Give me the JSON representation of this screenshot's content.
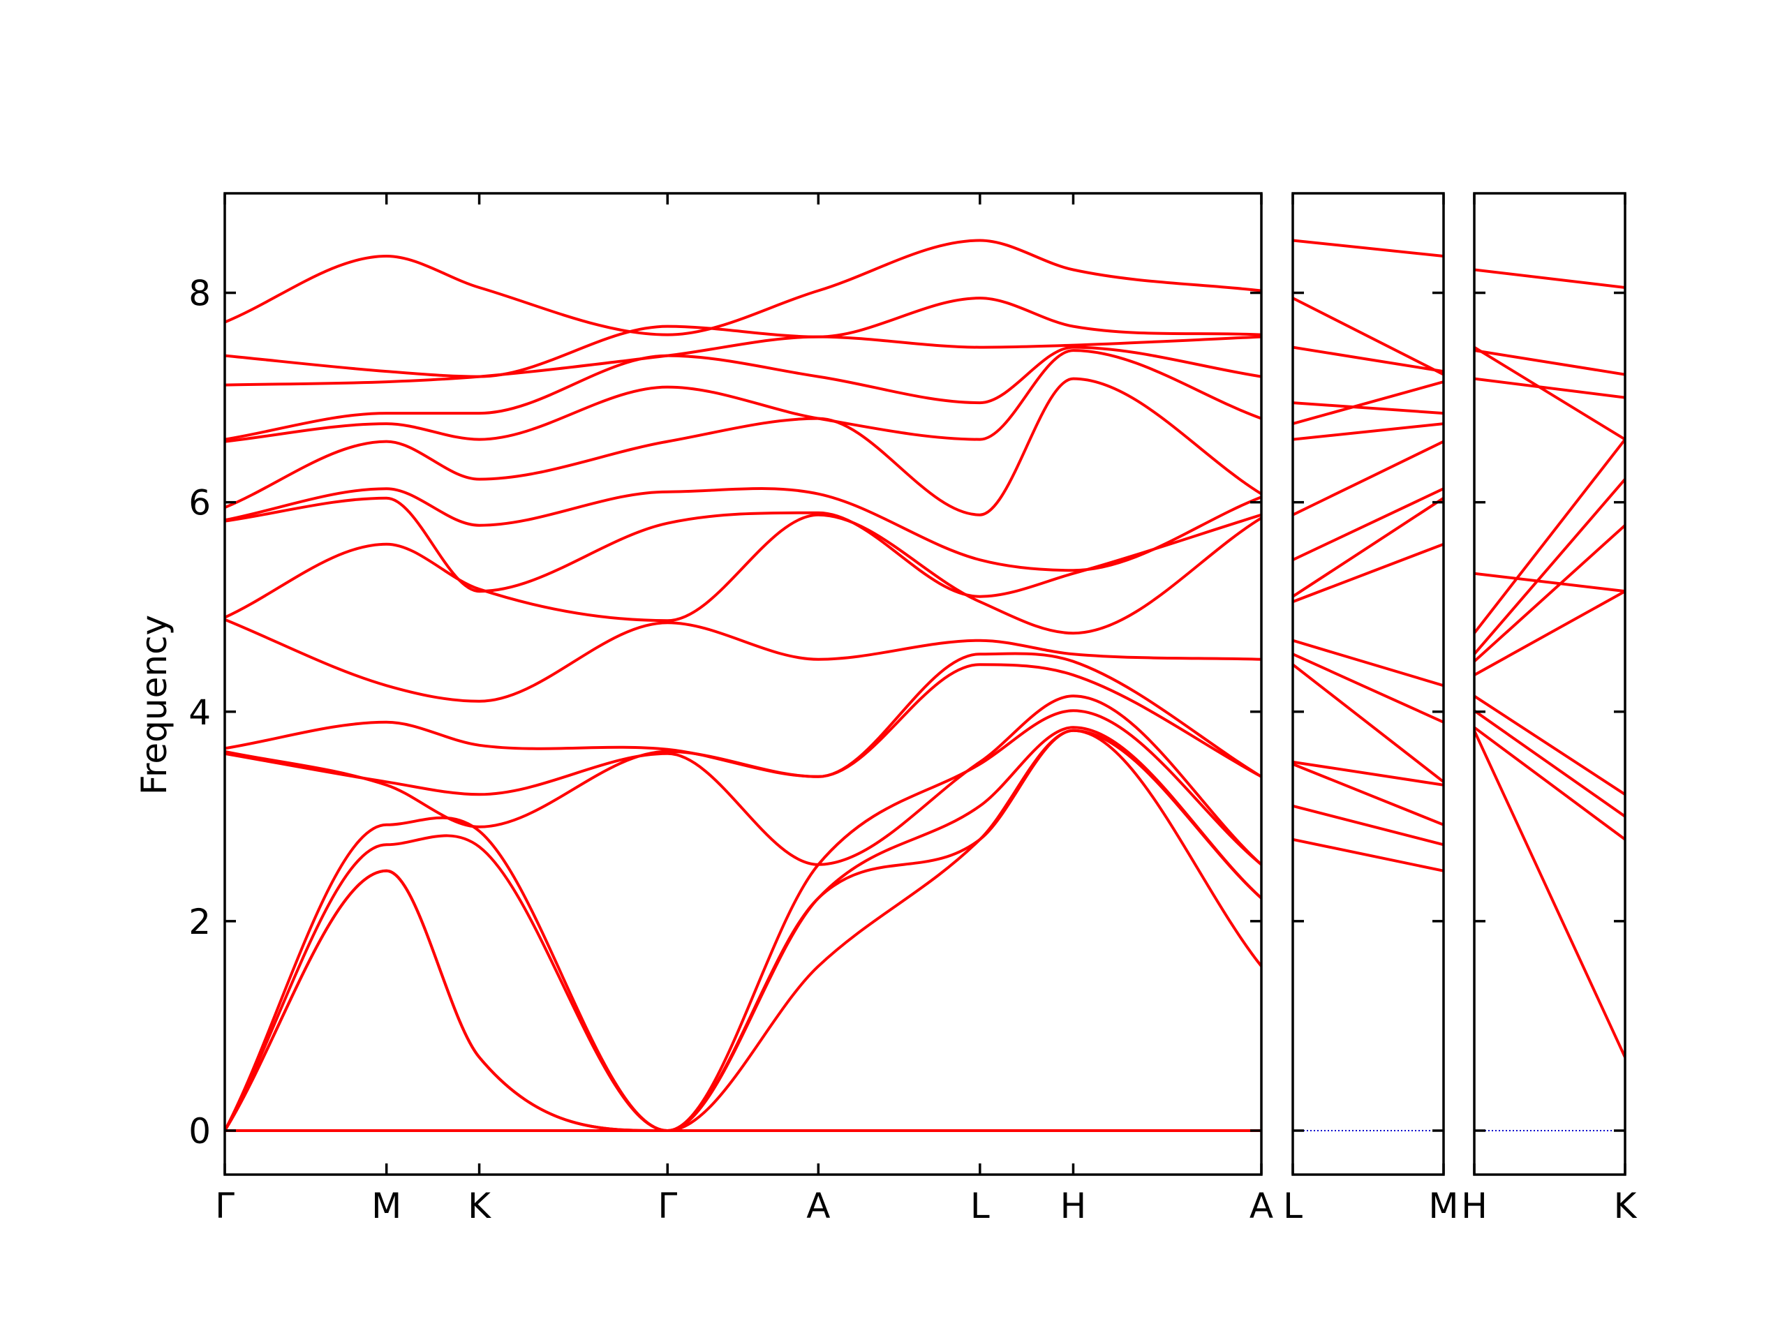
{
  "chart_data": {
    "type": "line",
    "ylabel": "Frequency",
    "xlabel": "",
    "ylim": [
      -0.42,
      8.95
    ],
    "yticks": [
      0,
      2,
      4,
      6,
      8
    ],
    "grid": false,
    "legend": "none",
    "band_color": "#ff0000",
    "zero_line_color": "#0000cc",
    "panels": [
      {
        "ticks": [
          "Γ",
          "M",
          "K",
          "Γ",
          "A",
          "L",
          "H",
          "A"
        ],
        "series": [
          {
            "name": "",
            "values": [
              [
                0,
                0.0,
                0.0,
                0.0,
                0.0,
                0.0,
                0.0,
                0.0
              ],
              [
                0,
                2.48,
                0.7,
                0.0,
                1.57,
                2.78,
                3.82,
                1.57
              ]
            ]
          },
          {
            "name": "",
            "values": [
              [
                0.0,
                2.48,
                0.7,
                0.0,
                2.22,
                2.78,
                3.82,
                2.22
              ]
            ]
          },
          {
            "name": "",
            "values": [
              [
                0.0,
                2.73,
                2.71,
                0.0,
                2.22,
                3.1,
                3.85,
                2.22
              ]
            ]
          },
          {
            "name": "",
            "values": [
              [
                0.0,
                2.92,
                2.86,
                0.0,
                2.54,
                3.5,
                4.01,
                2.54
              ]
            ]
          },
          {
            "name": "",
            "values": [
              [
                3.6,
                3.33,
                3.21,
                3.6,
                2.54,
                3.52,
                4.15,
                2.54
              ]
            ]
          },
          {
            "name": "",
            "values": [
              [
                3.62,
                3.3,
                2.9,
                3.62,
                3.38,
                4.45,
                4.35,
                3.38
              ]
            ]
          },
          {
            "name": "",
            "values": [
              [
                3.65,
                3.9,
                3.68,
                3.64,
                3.38,
                4.55,
                4.48,
                3.38
              ]
            ]
          },
          {
            "name": "",
            "values": [
              [
                4.88,
                4.25,
                4.1,
                4.85,
                4.5,
                4.68,
                4.55,
                4.5
              ]
            ]
          },
          {
            "name": "",
            "values": [
              [
                4.9,
                5.6,
                5.17,
                4.87,
                5.88,
                5.05,
                4.75,
                5.85
              ]
            ]
          },
          {
            "name": "",
            "values": [
              [
                5.82,
                6.04,
                5.15,
                5.8,
                5.9,
                5.1,
                5.32,
                5.88
              ]
            ]
          },
          {
            "name": "",
            "values": [
              [
                5.83,
                6.13,
                5.78,
                6.1,
                6.08,
                5.45,
                5.35,
                6.05
              ]
            ]
          },
          {
            "name": "",
            "values": [
              [
                5.95,
                6.58,
                6.22,
                6.58,
                6.8,
                5.88,
                7.18,
                6.08
              ]
            ]
          },
          {
            "name": "",
            "values": [
              [
                6.58,
                6.75,
                6.6,
                7.1,
                6.8,
                6.6,
                7.45,
                6.8
              ]
            ]
          },
          {
            "name": "",
            "values": [
              [
                6.6,
                6.85,
                6.85,
                7.4,
                7.2,
                6.95,
                7.48,
                7.2
              ]
            ]
          },
          {
            "name": "",
            "values": [
              [
                7.12,
                7.15,
                7.2,
                7.4,
                7.58,
                7.48,
                7.5,
                7.58
              ]
            ]
          },
          {
            "name": "",
            "values": [
              [
                7.4,
                7.25,
                7.2,
                7.68,
                7.58,
                7.95,
                7.68,
                7.6
              ]
            ]
          },
          {
            "name": "",
            "values": [
              [
                7.72,
                8.35,
                8.05,
                7.6,
                8.02,
                8.5,
                8.22,
                8.02
              ]
            ]
          }
        ]
      },
      {
        "ticks": [
          "L",
          "M"
        ],
        "series": [
          {
            "name": "",
            "values": [
              [
                2.78,
                2.48
              ]
            ]
          },
          {
            "name": "",
            "values": [
              [
                3.1,
                2.73
              ]
            ]
          },
          {
            "name": "",
            "values": [
              [
                3.5,
                2.92
              ]
            ]
          },
          {
            "name": "",
            "values": [
              [
                3.52,
                3.3
              ]
            ]
          },
          {
            "name": "",
            "values": [
              [
                4.45,
                3.33
              ]
            ]
          },
          {
            "name": "",
            "values": [
              [
                4.55,
                3.9
              ]
            ]
          },
          {
            "name": "",
            "values": [
              [
                4.68,
                4.25
              ]
            ]
          },
          {
            "name": "",
            "values": [
              [
                5.05,
                5.6
              ]
            ]
          },
          {
            "name": "",
            "values": [
              [
                5.1,
                6.04
              ]
            ]
          },
          {
            "name": "",
            "values": [
              [
                5.45,
                6.13
              ]
            ]
          },
          {
            "name": "",
            "values": [
              [
                5.88,
                6.58
              ]
            ]
          },
          {
            "name": "",
            "values": [
              [
                6.6,
                6.75
              ]
            ]
          },
          {
            "name": "",
            "values": [
              [
                6.95,
                6.85
              ]
            ]
          },
          {
            "name": "",
            "values": [
              [
                6.75,
                7.15
              ]
            ]
          },
          {
            "name": "",
            "values": [
              [
                7.48,
                7.25
              ]
            ]
          },
          {
            "name": "",
            "values": [
              [
                7.95,
                7.22
              ]
            ]
          },
          {
            "name": "",
            "values": [
              [
                8.5,
                8.35
              ]
            ]
          }
        ]
      },
      {
        "ticks": [
          "H",
          "K"
        ],
        "series": [
          {
            "name": "",
            "values": [
              [
                3.82,
                0.7
              ]
            ]
          },
          {
            "name": "",
            "values": [
              [
                3.85,
                2.78
              ]
            ]
          },
          {
            "name": "",
            "values": [
              [
                4.01,
                3.0
              ]
            ]
          },
          {
            "name": "",
            "values": [
              [
                4.15,
                3.21
              ]
            ]
          },
          {
            "name": "",
            "values": [
              [
                4.35,
                5.15
              ]
            ]
          },
          {
            "name": "",
            "values": [
              [
                4.48,
                5.78
              ]
            ]
          },
          {
            "name": "",
            "values": [
              [
                4.55,
                6.22
              ]
            ]
          },
          {
            "name": "",
            "values": [
              [
                4.75,
                6.6
              ]
            ]
          },
          {
            "name": "",
            "values": [
              [
                5.32,
                5.15
              ]
            ]
          },
          {
            "name": "",
            "values": [
              [
                7.18,
                7.0
              ]
            ]
          },
          {
            "name": "",
            "values": [
              [
                7.45,
                7.22
              ]
            ]
          },
          {
            "name": "",
            "values": [
              [
                7.48,
                6.6
              ]
            ]
          },
          {
            "name": "",
            "values": [
              [
                8.22,
                8.05
              ]
            ]
          }
        ]
      }
    ]
  }
}
